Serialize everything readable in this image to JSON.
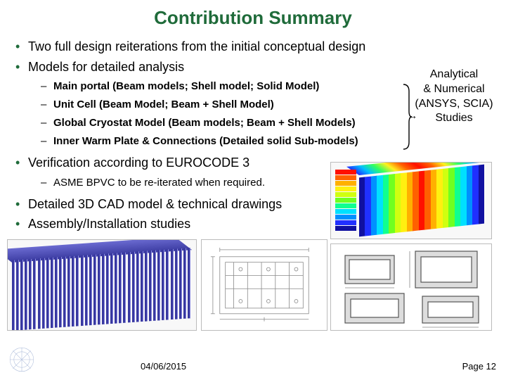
{
  "title": "Contribution Summary",
  "title_color": "#1f6b3a",
  "bullets_l1": [
    "Two full design reiterations from the initial conceptual design",
    "Models for detailed analysis",
    "Verification according to EUROCODE 3",
    "Detailed 3D CAD model & technical drawings",
    "Assembly/Installation studies"
  ],
  "sub_models": [
    "Main portal (Beam models; Shell model; Solid Model)",
    "Unit Cell (Beam Model; Beam + Shell Model)",
    "Global Cryostat Model (Beam models; Beam + Shell Models)",
    "Inner Warm Plate & Connections (Detailed solid Sub-models)"
  ],
  "sub_verification": [
    "ASME BPVC to be re-iterated when required."
  ],
  "side_note": {
    "line1": "Analytical",
    "line2": "& Numerical",
    "line3": "(ANSYS, SCIA)",
    "line4": "Studies"
  },
  "footer": {
    "date": "04/06/2015",
    "page": "Page 12"
  },
  "fea_colors": [
    "#1010a0",
    "#2030ff",
    "#0090ff",
    "#00e0ff",
    "#10ff90",
    "#70ff20",
    "#d0ff10",
    "#fff010",
    "#ffb000",
    "#ff6000",
    "#ff1000"
  ],
  "rib_color": "#3838a0"
}
